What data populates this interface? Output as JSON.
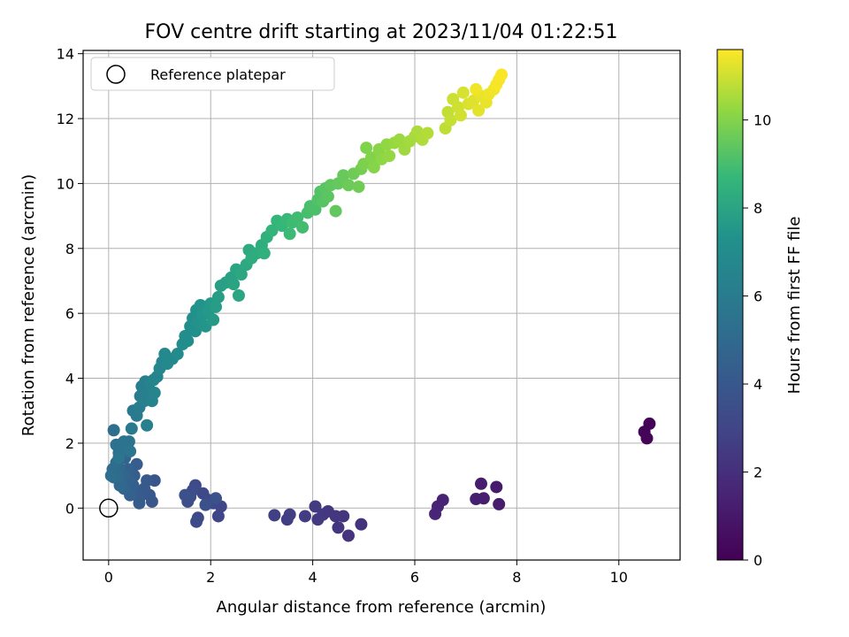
{
  "chart_data": {
    "type": "scatter",
    "title": "FOV centre drift starting at 2023/11/04 01:22:51",
    "xlabel": "Angular distance from reference (arcmin)",
    "ylabel": "Rotation from reference (arcmin)",
    "xlim": [
      -0.5,
      11.2
    ],
    "ylim": [
      -1.6,
      14.1
    ],
    "xticks": [
      0,
      2,
      4,
      6,
      8,
      10
    ],
    "yticks": [
      0,
      2,
      4,
      6,
      8,
      10,
      12,
      14
    ],
    "grid": true,
    "legend": {
      "placement": "top-left",
      "entries": [
        {
          "label": "Reference platepar",
          "marker": "open-circle"
        }
      ]
    },
    "reference_point": {
      "x": 0,
      "y": 0
    },
    "colorbar": {
      "label": "Hours from first FF file",
      "colormap": "viridis",
      "range": [
        0,
        11.6
      ],
      "ticks": [
        0,
        2,
        4,
        6,
        8,
        10
      ]
    },
    "series": [
      {
        "colored_by": "hours",
        "points": [
          {
            "x": 10.6,
            "y": 2.6,
            "t": 0.1
          },
          {
            "x": 10.5,
            "y": 2.35,
            "t": 0.15
          },
          {
            "x": 10.55,
            "y": 2.15,
            "t": 0.2
          },
          {
            "x": 7.6,
            "y": 0.65,
            "t": 1.1
          },
          {
            "x": 7.65,
            "y": 0.12,
            "t": 1.15
          },
          {
            "x": 7.3,
            "y": 0.75,
            "t": 1.2
          },
          {
            "x": 7.35,
            "y": 0.3,
            "t": 1.25
          },
          {
            "x": 7.2,
            "y": 0.28,
            "t": 1.3
          },
          {
            "x": 6.55,
            "y": 0.25,
            "t": 1.45
          },
          {
            "x": 6.45,
            "y": 0.05,
            "t": 1.5
          },
          {
            "x": 6.4,
            "y": -0.18,
            "t": 1.55
          },
          {
            "x": 4.95,
            "y": -0.5,
            "t": 2.1
          },
          {
            "x": 4.7,
            "y": -0.85,
            "t": 2.15
          },
          {
            "x": 4.6,
            "y": -0.25,
            "t": 2.2
          },
          {
            "x": 4.5,
            "y": -0.6,
            "t": 2.25
          },
          {
            "x": 4.45,
            "y": -0.25,
            "t": 2.3
          },
          {
            "x": 4.3,
            "y": -0.1,
            "t": 2.35
          },
          {
            "x": 4.2,
            "y": -0.2,
            "t": 2.4
          },
          {
            "x": 4.1,
            "y": -0.35,
            "t": 2.45
          },
          {
            "x": 4.05,
            "y": 0.05,
            "t": 2.5
          },
          {
            "x": 3.85,
            "y": -0.25,
            "t": 2.55
          },
          {
            "x": 3.55,
            "y": -0.2,
            "t": 2.6
          },
          {
            "x": 3.5,
            "y": -0.35,
            "t": 2.65
          },
          {
            "x": 3.25,
            "y": -0.22,
            "t": 2.7
          },
          {
            "x": 2.2,
            "y": 0.05,
            "t": 3.0
          },
          {
            "x": 2.15,
            "y": -0.25,
            "t": 3.05
          },
          {
            "x": 2.05,
            "y": 0.15,
            "t": 3.1
          },
          {
            "x": 1.95,
            "y": 0.25,
            "t": 3.15
          },
          {
            "x": 1.85,
            "y": 0.45,
            "t": 3.2
          },
          {
            "x": 1.75,
            "y": -0.3,
            "t": 3.25
          },
          {
            "x": 1.72,
            "y": -0.42,
            "t": 3.3
          },
          {
            "x": 1.7,
            "y": 0.7,
            "t": 3.35
          },
          {
            "x": 1.65,
            "y": 0.55,
            "t": 3.4
          },
          {
            "x": 1.6,
            "y": 0.35,
            "t": 3.45
          },
          {
            "x": 1.55,
            "y": 0.2,
            "t": 3.5
          },
          {
            "x": 1.5,
            "y": 0.4,
            "t": 3.55
          },
          {
            "x": 2.1,
            "y": 0.3,
            "t": 3.6
          },
          {
            "x": 1.9,
            "y": 0.1,
            "t": 3.65
          },
          {
            "x": 0.9,
            "y": 0.85,
            "t": 3.9
          },
          {
            "x": 0.85,
            "y": 0.2,
            "t": 3.95
          },
          {
            "x": 0.8,
            "y": 0.4,
            "t": 4.0
          },
          {
            "x": 0.75,
            "y": 0.85,
            "t": 4.05
          },
          {
            "x": 0.7,
            "y": 0.6,
            "t": 4.1
          },
          {
            "x": 0.65,
            "y": 0.45,
            "t": 4.15
          },
          {
            "x": 0.6,
            "y": 0.3,
            "t": 4.2
          },
          {
            "x": 0.6,
            "y": 0.15,
            "t": 4.25
          },
          {
            "x": 0.55,
            "y": 1.35,
            "t": 4.3
          },
          {
            "x": 0.5,
            "y": 1.0,
            "t": 4.35
          },
          {
            "x": 0.48,
            "y": 0.7,
            "t": 4.4
          },
          {
            "x": 0.45,
            "y": 0.55,
            "t": 4.45
          },
          {
            "x": 0.42,
            "y": 0.4,
            "t": 4.5
          },
          {
            "x": 0.4,
            "y": 0.9,
            "t": 4.55
          },
          {
            "x": 0.38,
            "y": 1.2,
            "t": 4.6
          },
          {
            "x": 0.35,
            "y": 0.75,
            "t": 4.65
          },
          {
            "x": 0.32,
            "y": 1.55,
            "t": 4.7
          },
          {
            "x": 0.3,
            "y": 0.6,
            "t": 4.75
          },
          {
            "x": 0.28,
            "y": 1.0,
            "t": 4.8
          },
          {
            "x": 0.25,
            "y": 0.85,
            "t": 4.85
          },
          {
            "x": 0.22,
            "y": 0.7,
            "t": 4.9
          },
          {
            "x": 0.2,
            "y": 1.25,
            "t": 4.95
          },
          {
            "x": 0.18,
            "y": 0.95,
            "t": 5.0
          },
          {
            "x": 0.15,
            "y": 1.4,
            "t": 5.05
          },
          {
            "x": 0.12,
            "y": 1.1,
            "t": 5.1
          },
          {
            "x": 0.1,
            "y": 0.95,
            "t": 5.15
          },
          {
            "x": 0.08,
            "y": 1.2,
            "t": 5.2
          },
          {
            "x": 0.05,
            "y": 1.0,
            "t": 5.25
          },
          {
            "x": 0.1,
            "y": 2.4,
            "t": 5.3
          },
          {
            "x": 0.15,
            "y": 1.95,
            "t": 5.35
          },
          {
            "x": 0.2,
            "y": 1.7,
            "t": 5.4
          },
          {
            "x": 0.25,
            "y": 1.85,
            "t": 5.45
          },
          {
            "x": 0.3,
            "y": 2.05,
            "t": 5.5
          },
          {
            "x": 0.35,
            "y": 1.9,
            "t": 5.55
          },
          {
            "x": 0.4,
            "y": 2.05,
            "t": 5.6
          },
          {
            "x": 0.42,
            "y": 1.75,
            "t": 5.65
          },
          {
            "x": 0.2,
            "y": 1.55,
            "t": 5.7
          },
          {
            "x": 0.45,
            "y": 2.45,
            "t": 5.85
          },
          {
            "x": 0.48,
            "y": 3.0,
            "t": 5.9
          },
          {
            "x": 0.55,
            "y": 2.85,
            "t": 5.95
          },
          {
            "x": 0.6,
            "y": 3.1,
            "t": 6.0
          },
          {
            "x": 0.62,
            "y": 3.45,
            "t": 6.05
          },
          {
            "x": 0.65,
            "y": 3.75,
            "t": 6.1
          },
          {
            "x": 0.68,
            "y": 3.6,
            "t": 6.15
          },
          {
            "x": 0.7,
            "y": 3.3,
            "t": 6.2
          },
          {
            "x": 0.72,
            "y": 3.9,
            "t": 6.25
          },
          {
            "x": 0.75,
            "y": 2.55,
            "t": 6.3
          },
          {
            "x": 0.78,
            "y": 3.5,
            "t": 6.35
          },
          {
            "x": 0.8,
            "y": 3.85,
            "t": 6.4
          },
          {
            "x": 0.85,
            "y": 3.3,
            "t": 6.45
          },
          {
            "x": 0.88,
            "y": 3.95,
            "t": 6.5
          },
          {
            "x": 0.9,
            "y": 3.55,
            "t": 6.55
          },
          {
            "x": 0.95,
            "y": 4.05,
            "t": 6.6
          },
          {
            "x": 1.0,
            "y": 4.3,
            "t": 6.65
          },
          {
            "x": 1.05,
            "y": 4.5,
            "t": 6.7
          },
          {
            "x": 1.1,
            "y": 4.75,
            "t": 6.75
          },
          {
            "x": 1.15,
            "y": 4.45,
            "t": 6.8
          },
          {
            "x": 1.25,
            "y": 4.6,
            "t": 6.85
          },
          {
            "x": 1.35,
            "y": 4.75,
            "t": 6.9
          },
          {
            "x": 1.45,
            "y": 5.05,
            "t": 7.0
          },
          {
            "x": 1.5,
            "y": 5.3,
            "t": 7.05
          },
          {
            "x": 1.55,
            "y": 5.15,
            "t": 7.1
          },
          {
            "x": 1.6,
            "y": 5.6,
            "t": 7.15
          },
          {
            "x": 1.65,
            "y": 5.85,
            "t": 7.2
          },
          {
            "x": 1.7,
            "y": 5.45,
            "t": 7.25
          },
          {
            "x": 1.72,
            "y": 6.1,
            "t": 7.3
          },
          {
            "x": 1.75,
            "y": 5.7,
            "t": 7.35
          },
          {
            "x": 1.8,
            "y": 6.25,
            "t": 7.4
          },
          {
            "x": 1.85,
            "y": 5.95,
            "t": 7.45
          },
          {
            "x": 1.9,
            "y": 5.6,
            "t": 7.5
          },
          {
            "x": 1.95,
            "y": 6.05,
            "t": 7.55
          },
          {
            "x": 2.0,
            "y": 6.3,
            "t": 7.6
          },
          {
            "x": 2.05,
            "y": 5.8,
            "t": 7.65
          },
          {
            "x": 2.1,
            "y": 6.2,
            "t": 7.7
          },
          {
            "x": 2.15,
            "y": 6.5,
            "t": 7.75
          },
          {
            "x": 2.2,
            "y": 6.85,
            "t": 7.8
          },
          {
            "x": 2.3,
            "y": 6.95,
            "t": 7.85
          },
          {
            "x": 2.4,
            "y": 7.1,
            "t": 7.9
          },
          {
            "x": 2.45,
            "y": 6.9,
            "t": 7.95
          },
          {
            "x": 2.5,
            "y": 7.35,
            "t": 8.0
          },
          {
            "x": 2.55,
            "y": 6.55,
            "t": 8.05
          },
          {
            "x": 2.6,
            "y": 7.2,
            "t": 8.1
          },
          {
            "x": 2.7,
            "y": 7.5,
            "t": 8.15
          },
          {
            "x": 2.75,
            "y": 7.95,
            "t": 8.2
          },
          {
            "x": 2.8,
            "y": 7.7,
            "t": 8.25
          },
          {
            "x": 2.9,
            "y": 7.85,
            "t": 8.3
          },
          {
            "x": 3.0,
            "y": 8.1,
            "t": 8.35
          },
          {
            "x": 3.05,
            "y": 7.85,
            "t": 8.4
          },
          {
            "x": 3.1,
            "y": 8.35,
            "t": 8.45
          },
          {
            "x": 3.2,
            "y": 8.55,
            "t": 8.6
          },
          {
            "x": 3.3,
            "y": 8.85,
            "t": 8.65
          },
          {
            "x": 3.4,
            "y": 8.7,
            "t": 8.7
          },
          {
            "x": 3.5,
            "y": 8.9,
            "t": 8.75
          },
          {
            "x": 3.55,
            "y": 8.45,
            "t": 8.8
          },
          {
            "x": 3.6,
            "y": 8.8,
            "t": 8.85
          },
          {
            "x": 3.7,
            "y": 8.95,
            "t": 8.9
          },
          {
            "x": 3.8,
            "y": 8.65,
            "t": 8.95
          },
          {
            "x": 3.9,
            "y": 9.1,
            "t": 9.0
          },
          {
            "x": 3.95,
            "y": 9.3,
            "t": 9.05
          },
          {
            "x": 4.05,
            "y": 9.2,
            "t": 9.1
          },
          {
            "x": 4.1,
            "y": 9.5,
            "t": 9.15
          },
          {
            "x": 4.15,
            "y": 9.75,
            "t": 9.2
          },
          {
            "x": 4.2,
            "y": 9.45,
            "t": 9.25
          },
          {
            "x": 4.25,
            "y": 9.85,
            "t": 9.3
          },
          {
            "x": 4.3,
            "y": 9.6,
            "t": 9.35
          },
          {
            "x": 4.35,
            "y": 9.95,
            "t": 9.4
          },
          {
            "x": 4.45,
            "y": 9.15,
            "t": 9.45
          },
          {
            "x": 4.5,
            "y": 10.0,
            "t": 9.5
          },
          {
            "x": 4.6,
            "y": 10.25,
            "t": 9.55
          },
          {
            "x": 4.7,
            "y": 9.95,
            "t": 9.6
          },
          {
            "x": 4.8,
            "y": 10.3,
            "t": 9.65
          },
          {
            "x": 4.9,
            "y": 9.9,
            "t": 9.7
          },
          {
            "x": 4.95,
            "y": 10.45,
            "t": 9.75
          },
          {
            "x": 5.0,
            "y": 10.6,
            "t": 9.9
          },
          {
            "x": 5.05,
            "y": 11.1,
            "t": 9.95
          },
          {
            "x": 5.15,
            "y": 10.8,
            "t": 10.0
          },
          {
            "x": 5.2,
            "y": 10.5,
            "t": 10.05
          },
          {
            "x": 5.3,
            "y": 11.05,
            "t": 10.1
          },
          {
            "x": 5.35,
            "y": 10.75,
            "t": 10.15
          },
          {
            "x": 5.45,
            "y": 11.2,
            "t": 10.2
          },
          {
            "x": 5.5,
            "y": 10.85,
            "t": 10.25
          },
          {
            "x": 5.6,
            "y": 11.25,
            "t": 10.3
          },
          {
            "x": 5.7,
            "y": 11.35,
            "t": 10.35
          },
          {
            "x": 5.8,
            "y": 11.05,
            "t": 10.4
          },
          {
            "x": 5.9,
            "y": 11.3,
            "t": 10.45
          },
          {
            "x": 6.0,
            "y": 11.45,
            "t": 10.5
          },
          {
            "x": 6.05,
            "y": 11.6,
            "t": 10.55
          },
          {
            "x": 6.15,
            "y": 11.35,
            "t": 10.6
          },
          {
            "x": 6.25,
            "y": 11.55,
            "t": 10.65
          },
          {
            "x": 6.6,
            "y": 11.7,
            "t": 10.8
          },
          {
            "x": 6.65,
            "y": 12.2,
            "t": 10.85
          },
          {
            "x": 6.7,
            "y": 11.95,
            "t": 10.9
          },
          {
            "x": 6.75,
            "y": 12.6,
            "t": 10.95
          },
          {
            "x": 6.85,
            "y": 12.35,
            "t": 11.0
          },
          {
            "x": 6.9,
            "y": 12.1,
            "t": 11.05
          },
          {
            "x": 6.95,
            "y": 12.8,
            "t": 11.1
          },
          {
            "x": 7.05,
            "y": 12.45,
            "t": 11.15
          },
          {
            "x": 7.15,
            "y": 12.55,
            "t": 11.2
          },
          {
            "x": 7.25,
            "y": 12.25,
            "t": 11.25
          },
          {
            "x": 7.3,
            "y": 12.7,
            "t": 11.3
          },
          {
            "x": 7.4,
            "y": 12.5,
            "t": 11.35
          },
          {
            "x": 7.45,
            "y": 12.75,
            "t": 11.4
          },
          {
            "x": 7.55,
            "y": 12.9,
            "t": 11.45
          },
          {
            "x": 7.6,
            "y": 13.05,
            "t": 11.5
          },
          {
            "x": 7.65,
            "y": 13.2,
            "t": 11.52
          },
          {
            "x": 7.7,
            "y": 13.35,
            "t": 11.55
          },
          {
            "x": 7.2,
            "y": 12.9,
            "t": 11.45
          }
        ]
      }
    ]
  }
}
